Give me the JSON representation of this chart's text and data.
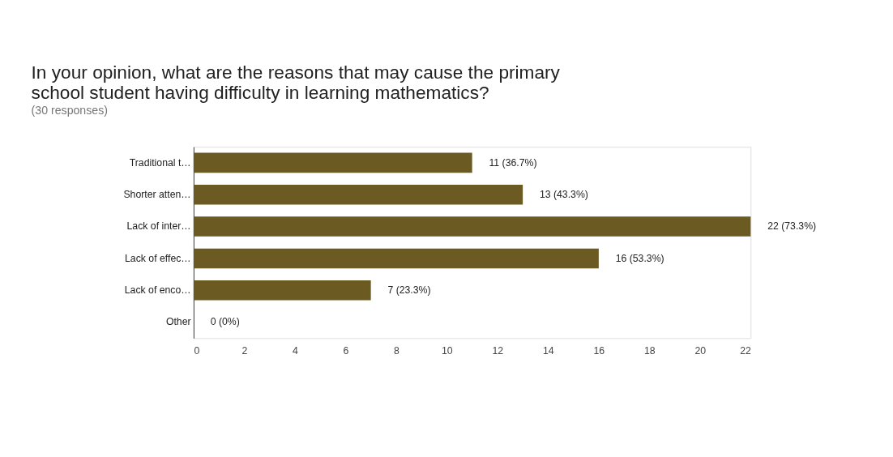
{
  "chart_data": {
    "type": "bar",
    "orientation": "horizontal",
    "title": "In your opinion, what are the reasons that may cause the primary school student having difficulty in learning mathematics?",
    "subtitle": "(30 responses)",
    "categories": [
      "Traditional t…",
      "Shorter atten…",
      "Lack of inter…",
      "Lack of effec…",
      "Lack of enco…",
      "Other"
    ],
    "values": [
      11,
      13,
      22,
      16,
      7,
      0
    ],
    "value_labels": [
      "11 (36.7%)",
      "13 (43.3%)",
      "22 (73.3%)",
      "16 (53.3%)",
      "7 (23.3%)",
      "0 (0%)"
    ],
    "color": "#6b5a22",
    "xlim": [
      0,
      22
    ],
    "xticks": [
      0,
      2,
      4,
      6,
      8,
      10,
      12,
      14,
      16,
      18,
      20,
      22
    ],
    "grid": false
  }
}
